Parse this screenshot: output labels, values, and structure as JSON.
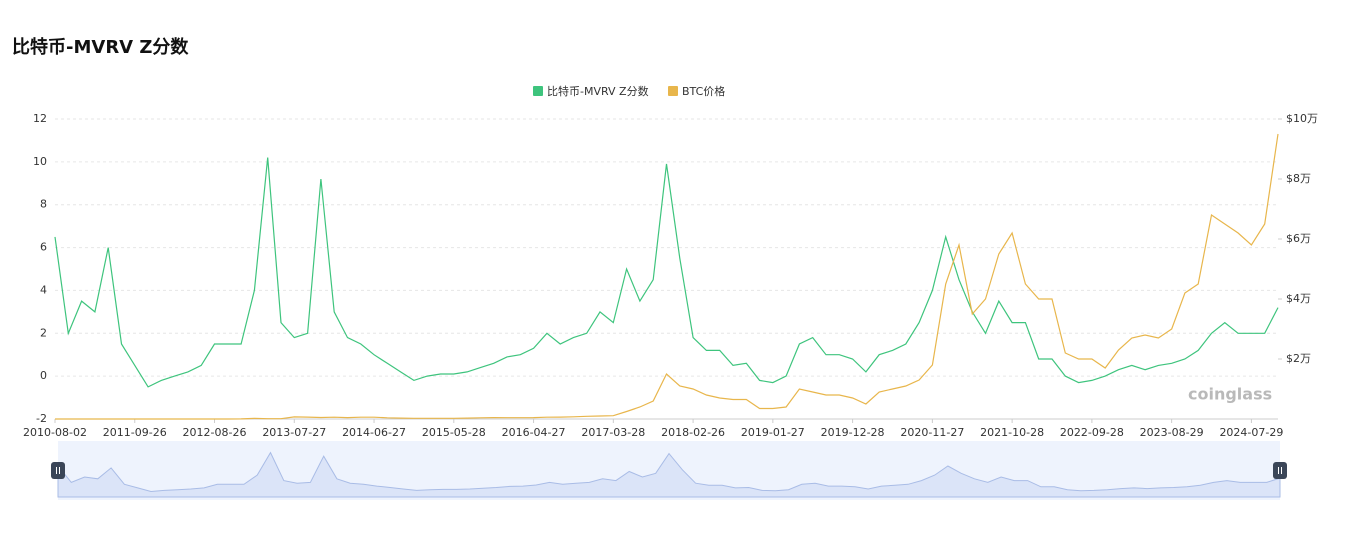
{
  "chart_data": {
    "type": "line",
    "title": "比特币-MVRV Z分数",
    "watermark": "coinglass",
    "x": [
      "2010-08-02",
      null,
      null,
      null,
      null,
      null,
      "2011-09-26",
      null,
      null,
      null,
      null,
      null,
      "2012-08-26",
      null,
      null,
      null,
      null,
      null,
      "2013-07-27",
      null,
      null,
      null,
      null,
      null,
      "2014-06-27",
      null,
      null,
      null,
      null,
      null,
      "2015-05-28",
      null,
      null,
      null,
      null,
      null,
      "2016-04-27",
      null,
      null,
      null,
      null,
      null,
      "2017-03-28",
      null,
      null,
      null,
      null,
      null,
      "2018-02-26",
      null,
      null,
      null,
      null,
      null,
      "2019-01-27",
      null,
      null,
      null,
      null,
      null,
      "2019-12-28",
      null,
      null,
      null,
      null,
      null,
      "2020-11-27",
      null,
      null,
      null,
      null,
      null,
      "2021-10-28",
      null,
      null,
      null,
      null,
      null,
      "2022-09-28",
      null,
      null,
      null,
      null,
      null,
      "2023-08-29",
      null,
      null,
      null,
      null,
      null,
      "2024-07-29",
      null,
      null
    ],
    "series": [
      {
        "name": "比特币-MVRV Z分数",
        "color": "#3ec47d",
        "values": [
          6.5,
          2,
          3.5,
          3,
          6,
          1.5,
          0.5,
          -0.5,
          -0.2,
          0,
          0.2,
          0.5,
          1.5,
          1.5,
          1.5,
          4,
          10.2,
          2.5,
          1.8,
          2,
          9.2,
          3,
          1.8,
          1.5,
          1,
          0.6,
          0.2,
          -0.2,
          0,
          0.1,
          0.1,
          0.2,
          0.4,
          0.6,
          0.9,
          1,
          1.3,
          2,
          1.5,
          1.8,
          2,
          3,
          2.5,
          5,
          3.5,
          4.5,
          9.9,
          5.5,
          1.8,
          1.2,
          1.2,
          0.5,
          0.6,
          -0.2,
          -0.3,
          0,
          1.5,
          1.8,
          1,
          1,
          0.8,
          0.2,
          1,
          1.2,
          1.5,
          2.5,
          4,
          6.5,
          4.5,
          3,
          2,
          3.5,
          2.5,
          2.5,
          0.8,
          0.8,
          0,
          -0.3,
          -0.2,
          0,
          0.3,
          0.5,
          0.3,
          0.5,
          0.6,
          0.8,
          1.2,
          2,
          2.5,
          2,
          2,
          2,
          3.2
        ]
      },
      {
        "name": "BTC价格",
        "color": "#e8b64c",
        "axis": "y2",
        "values": [
          0.07,
          0.3,
          0.9,
          0.7,
          15,
          10,
          5,
          3,
          5,
          10,
          12,
          13,
          13,
          15,
          50,
          200,
          100,
          100,
          700,
          650,
          500,
          600,
          450,
          600,
          600,
          400,
          300,
          250,
          230,
          250,
          250,
          300,
          400,
          450,
          420,
          440,
          450,
          600,
          650,
          750,
          900,
          1000,
          1100,
          2500,
          4000,
          6000,
          15000,
          11000,
          10000,
          8000,
          7000,
          6500,
          6500,
          3500,
          3500,
          4000,
          10000,
          9000,
          8000,
          8000,
          7000,
          5000,
          9000,
          10000,
          11000,
          13000,
          18000,
          45000,
          58000,
          35000,
          40000,
          55000,
          62000,
          45000,
          40000,
          40000,
          22000,
          20000,
          20000,
          17000,
          23000,
          27000,
          28000,
          27000,
          30000,
          42000,
          45000,
          68000,
          65000,
          62000,
          58000,
          65000,
          95000
        ]
      }
    ],
    "ylim": [
      -2,
      12
    ],
    "yticks": [
      -2,
      0,
      2,
      4,
      6,
      8,
      10,
      12
    ],
    "y2lim": [
      0,
      100000
    ],
    "y2ticks": [
      {
        "value": 20000,
        "label": "$2万"
      },
      {
        "value": 40000,
        "label": "$4万"
      },
      {
        "value": 60000,
        "label": "$6万"
      },
      {
        "value": 80000,
        "label": "$8万"
      },
      {
        "value": 100000,
        "label": "$10万"
      }
    ],
    "grid": true,
    "legend": "top"
  }
}
